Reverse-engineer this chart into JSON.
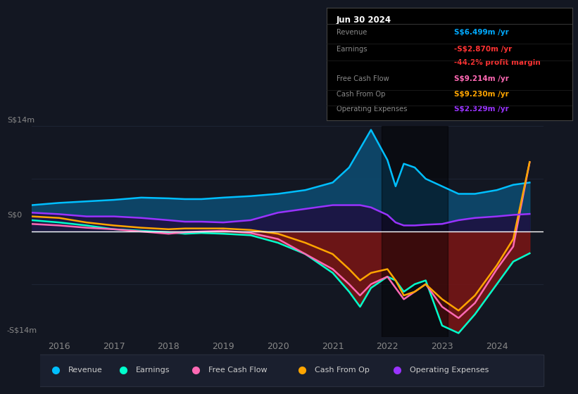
{
  "bg_color": "#131722",
  "ylim": [
    -14,
    14
  ],
  "xlim": [
    2015.5,
    2024.85
  ],
  "xticks": [
    2016,
    2017,
    2018,
    2019,
    2020,
    2021,
    2022,
    2023,
    2024
  ],
  "ylabel_top": "S$14m",
  "ylabel_zero": "S$0",
  "ylabel_bot": "-S$14m",
  "years": [
    2015.5,
    2016,
    2016.5,
    2017,
    2017.5,
    2018,
    2018.3,
    2018.6,
    2019,
    2019.5,
    2020,
    2020.5,
    2021,
    2021.3,
    2021.5,
    2021.7,
    2022.0,
    2022.15,
    2022.3,
    2022.5,
    2022.7,
    2023.0,
    2023.3,
    2023.6,
    2024.0,
    2024.3,
    2024.6
  ],
  "revenue": [
    3.5,
    3.8,
    4.0,
    4.2,
    4.5,
    4.4,
    4.3,
    4.3,
    4.5,
    4.7,
    5.0,
    5.5,
    6.5,
    8.5,
    11.0,
    13.5,
    9.5,
    6.0,
    9.0,
    8.5,
    7.0,
    6.0,
    5.0,
    5.0,
    5.5,
    6.2,
    6.5
  ],
  "earnings": [
    1.5,
    1.2,
    0.8,
    0.3,
    0.1,
    -0.1,
    -0.3,
    -0.2,
    -0.3,
    -0.5,
    -1.5,
    -3.0,
    -5.5,
    -8.0,
    -10.0,
    -7.5,
    -6.0,
    -6.5,
    -8.0,
    -7.0,
    -6.5,
    -12.5,
    -13.5,
    -11.0,
    -7.0,
    -4.0,
    -2.9
  ],
  "free_cash_flow": [
    1.0,
    0.8,
    0.5,
    0.3,
    0.0,
    -0.3,
    -0.1,
    0.0,
    0.1,
    -0.2,
    -1.0,
    -3.0,
    -5.0,
    -7.0,
    -8.5,
    -7.0,
    -6.0,
    -7.5,
    -9.0,
    -8.0,
    -7.0,
    -10.0,
    -11.5,
    -9.5,
    -5.0,
    -2.0,
    9.2
  ],
  "cash_from_op": [
    2.0,
    1.8,
    1.2,
    0.8,
    0.5,
    0.3,
    0.4,
    0.4,
    0.4,
    0.2,
    -0.3,
    -1.5,
    -3.0,
    -5.0,
    -6.5,
    -5.5,
    -5.0,
    -6.5,
    -8.5,
    -8.0,
    -7.0,
    -9.0,
    -10.5,
    -8.5,
    -4.5,
    -1.0,
    9.23
  ],
  "opex": [
    2.5,
    2.3,
    2.0,
    2.0,
    1.8,
    1.5,
    1.3,
    1.3,
    1.2,
    1.5,
    2.5,
    3.0,
    3.5,
    3.5,
    3.5,
    3.2,
    2.2,
    1.2,
    0.8,
    0.8,
    0.9,
    1.0,
    1.5,
    1.8,
    2.0,
    2.2,
    2.329
  ],
  "revenue_fill_color": "#0d4a6e",
  "earnings_pos_fill": "#1a5c4a",
  "earnings_neg_fill": "#7b1515",
  "opex_fill": "#1e1040",
  "revenue_line": "#00bfff",
  "earnings_line": "#00ffcc",
  "fcf_line": "#ff69b4",
  "cashop_line": "#ffa500",
  "opex_line": "#9933ff",
  "grid_color": "#1e2535",
  "zero_color": "#ffffff",
  "highlight_start": 2021.9,
  "highlight_end": 2023.1,
  "info_date": "Jun 30 2024",
  "info_rows": [
    {
      "label": "Revenue",
      "value": "S$6.499m /yr",
      "color": "#00aaff"
    },
    {
      "label": "Earnings",
      "value": "-S$2.870m /yr",
      "color": "#ff3333"
    },
    {
      "label": "",
      "value": "-44.2% profit margin",
      "color": "#ff3333"
    },
    {
      "label": "Free Cash Flow",
      "value": "S$9.214m /yr",
      "color": "#ff69b4"
    },
    {
      "label": "Cash From Op",
      "value": "S$9.230m /yr",
      "color": "#ffa500"
    },
    {
      "label": "Operating Expenses",
      "value": "S$2.329m /yr",
      "color": "#9933ff"
    }
  ],
  "legend_items": [
    {
      "label": "Revenue",
      "color": "#00bfff"
    },
    {
      "label": "Earnings",
      "color": "#00ffcc"
    },
    {
      "label": "Free Cash Flow",
      "color": "#ff69b4"
    },
    {
      "label": "Cash From Op",
      "color": "#ffa500"
    },
    {
      "label": "Operating Expenses",
      "color": "#9933ff"
    }
  ]
}
